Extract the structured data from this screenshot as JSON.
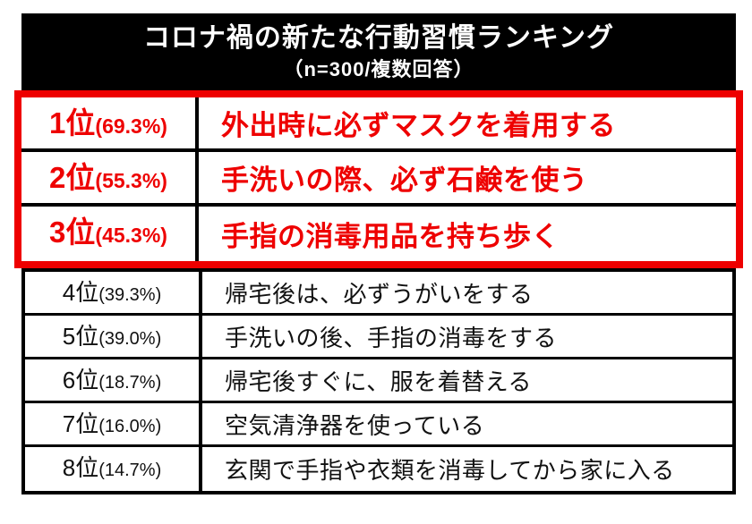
{
  "header": {
    "title": "コロナ禍の新たな行動習慣ランキング",
    "subtitle": "（n=300/複数回答）"
  },
  "ranking": [
    {
      "rank": "1位",
      "percent": "(69.3%)",
      "label": "外出時に必ずマスクを着用する",
      "highlighted": true
    },
    {
      "rank": "2位",
      "percent": "(55.3%)",
      "label": "手洗いの際、必ず石鹸を使う",
      "highlighted": true
    },
    {
      "rank": "3位",
      "percent": "(45.3%)",
      "label": "手指の消毒用品を持ち歩く",
      "highlighted": true
    },
    {
      "rank": "4位",
      "percent": "(39.3%)",
      "label": "帰宅後は、必ずうがいをする",
      "highlighted": false
    },
    {
      "rank": "5位",
      "percent": "(39.0%)",
      "label": "手洗いの後、手指の消毒をする",
      "highlighted": false
    },
    {
      "rank": "6位",
      "percent": "(18.7%)",
      "label": "帰宅後すぐに、服を着替える",
      "highlighted": false
    },
    {
      "rank": "7位",
      "percent": "(16.0%)",
      "label": "空気清浄器を使っている",
      "highlighted": false
    },
    {
      "rank": "8位",
      "percent": "(14.7%)",
      "label": "玄関で手指や衣類を消毒してから家に入る",
      "highlighted": false
    }
  ],
  "colors": {
    "highlight_red": "#ee0000",
    "header_bg": "#000000",
    "header_text": "#ffffff",
    "row_text": "#111111",
    "border_black": "#000000"
  },
  "chart_data": {
    "type": "table",
    "title": "コロナ禍の新たな行動習慣ランキング",
    "subtitle": "（n=300/複数回答）",
    "n": 300,
    "answer_type": "複数回答",
    "unit": "%",
    "ranks": [
      1,
      2,
      3,
      4,
      5,
      6,
      7,
      8
    ],
    "categories": [
      "外出時に必ずマスクを着用する",
      "手洗いの際、必ず石鹸を使う",
      "手指の消毒用品を持ち歩く",
      "帰宅後は、必ずうがいをする",
      "手洗いの後、手指の消毒をする",
      "帰宅後すぐに、服を着替える",
      "空気清浄器を使っている",
      "玄関で手指や衣類を消毒してから家に入る"
    ],
    "values": [
      69.3,
      55.3,
      45.3,
      39.3,
      39.0,
      18.7,
      16.0,
      14.7
    ],
    "highlighted_ranks": [
      1,
      2,
      3
    ]
  }
}
